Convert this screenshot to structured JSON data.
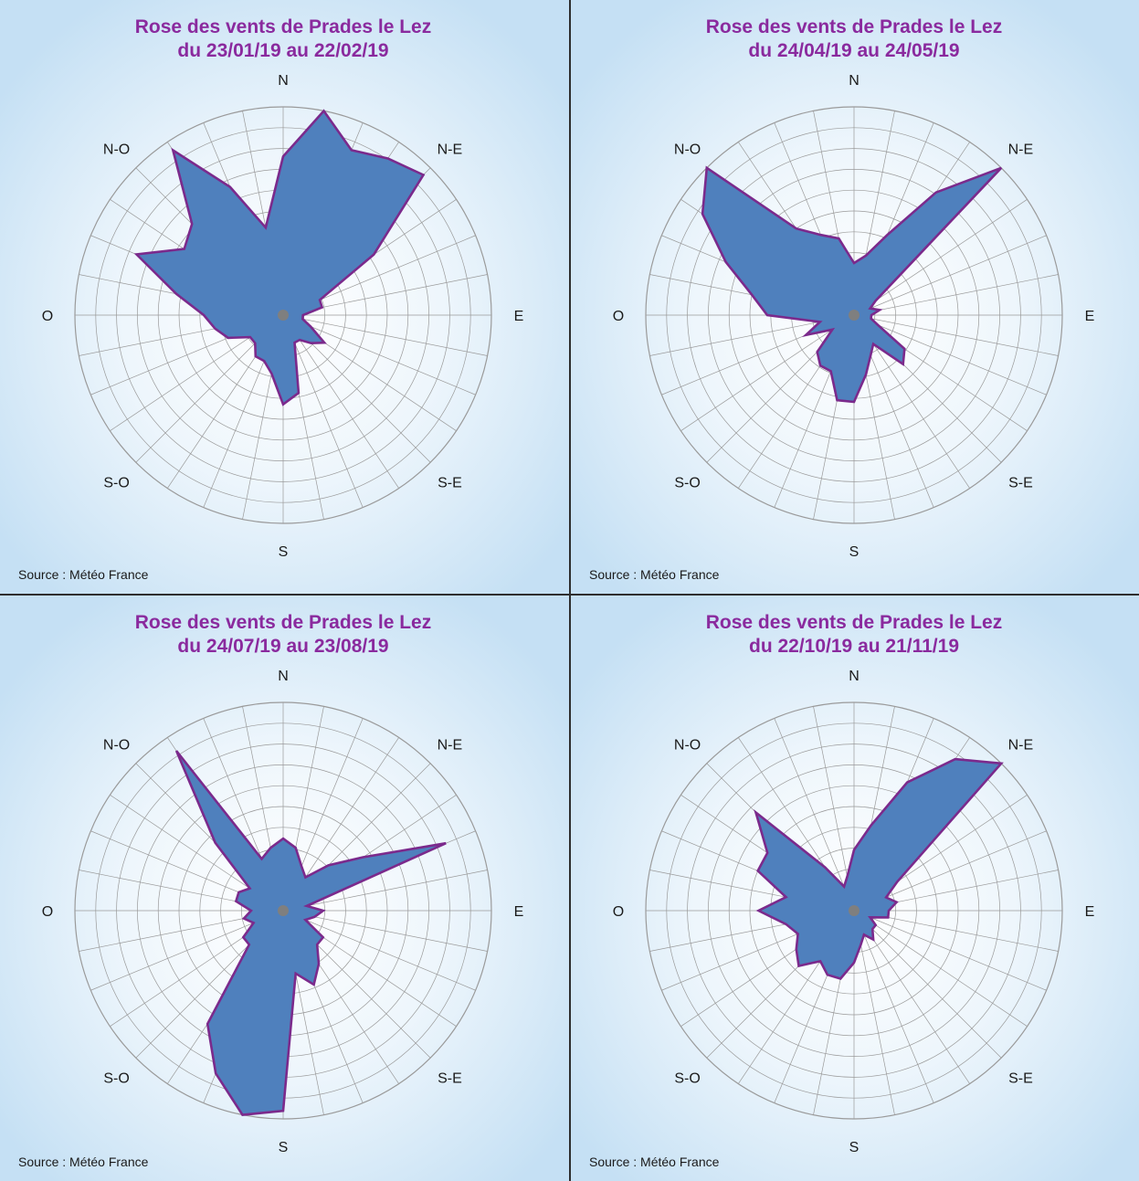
{
  "chart_data": [
    {
      "type": "radar",
      "title_line1": "Rose des vents de Prades le Lez",
      "title_line2": "du 23/01/19 au 22/02/19",
      "source": "Source : Météo France",
      "directions": [
        "N",
        "N-E",
        "E",
        "S-E",
        "S",
        "S-O",
        "O",
        "N-O"
      ],
      "values": [
        8,
        10.5,
        9,
        9.5,
        10,
        5.5,
        2,
        2,
        1,
        1,
        1.5,
        2.5,
        2,
        1.5,
        1.5,
        4,
        4.5,
        3,
        2.5,
        2.5,
        2,
        2,
        3,
        3.5,
        4,
        5.5,
        8,
        6,
        6.5,
        10,
        7,
        4.5
      ],
      "rmax": 10.5
    },
    {
      "type": "radar",
      "title_line1": "Rose des vents de Prades le Lez",
      "title_line2": "du 24/04/19 au 24/05/19",
      "source": "Source : Météo France",
      "directions": [
        "N",
        "N-E",
        "E",
        "S-E",
        "S",
        "S-O",
        "O",
        "N-O"
      ],
      "values": [
        3,
        3.5,
        5,
        8.5,
        12,
        1.5,
        1,
        1.5,
        1,
        1,
        1.5,
        3.5,
        4,
        2,
        2.5,
        3.5,
        5,
        5,
        3.5,
        3.5,
        3,
        1.5,
        3,
        2,
        5,
        6,
        8,
        10.5,
        12,
        6,
        5,
        4.5
      ],
      "rmax": 12
    },
    {
      "type": "radar",
      "title_line1": "Rose des vents de Prades le Lez",
      "title_line2": "du 24/07/19 au 23/08/19",
      "source": "Source : Météo France",
      "directions": [
        "N",
        "N-E",
        "E",
        "S-E",
        "S",
        "S-O",
        "O",
        "N-O"
      ],
      "values": [
        4.5,
        4,
        3,
        2.5,
        4,
        6,
        11,
        1.5,
        2.5,
        2,
        1.5,
        3,
        3,
        4,
        5,
        4,
        12.5,
        13,
        11,
        8.5,
        3,
        3,
        2,
        2.5,
        2,
        3,
        3,
        2.5,
        6,
        12,
        3.5,
        4
      ],
      "rmax": 13
    },
    {
      "type": "radar",
      "title_line1": "Rose des vents de Prades le Lez",
      "title_line2": "du 22/10/19 au 21/11/19",
      "source": "Source : Météo France",
      "directions": [
        "N",
        "N-E",
        "E",
        "S-E",
        "S",
        "S-O",
        "O",
        "N-O"
      ],
      "values": [
        3.5,
        5,
        8,
        10.5,
        12,
        3,
        2,
        2.5,
        2,
        2,
        1,
        1.5,
        1.5,
        2,
        1.5,
        2,
        3,
        4,
        4,
        3.5,
        4.5,
        4,
        3.5,
        4,
        5.5,
        4,
        6,
        6,
        8,
        3,
        1.5,
        2
      ],
      "rmax": 12
    }
  ]
}
